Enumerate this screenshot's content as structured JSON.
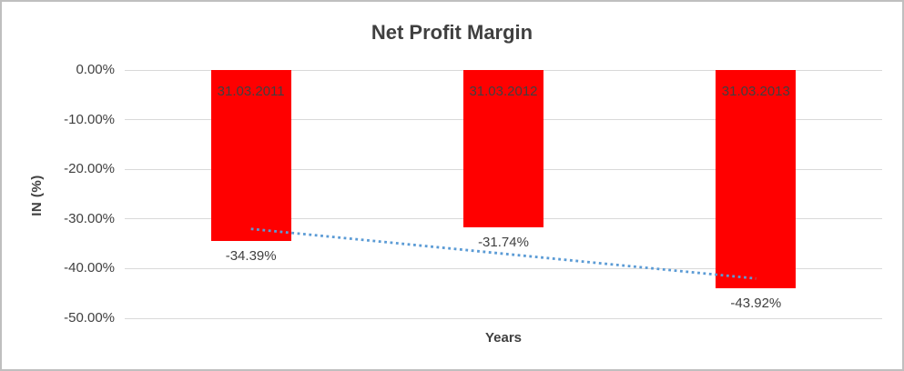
{
  "chart_data": {
    "type": "bar",
    "title": "Net Profit Margin",
    "xlabel": "Years",
    "ylabel": "IN (%)",
    "categories": [
      "31.03.2011",
      "31.03.2012",
      "31.03.2013"
    ],
    "values": [
      -34.39,
      -31.74,
      -43.92
    ],
    "value_labels": [
      "-34.39%",
      "-31.74%",
      "-43.92%"
    ],
    "ylim": [
      0,
      -50
    ],
    "yticks": [
      0,
      -10,
      -20,
      -30,
      -40,
      -50
    ],
    "ytick_labels": [
      "0.00%",
      "-10.00%",
      "-20.00%",
      "-30.00%",
      "-40.00%",
      "-50.00%"
    ],
    "grid": true,
    "legend": "none",
    "category_label_position": "inside-top",
    "value_label_position": "outside-end",
    "trendline": {
      "type": "linear",
      "style": "dotted",
      "start_value": -32.0,
      "end_value": -42.0
    }
  },
  "colors": {
    "bar": "#FF0000",
    "trendline": "#5B9BD5",
    "gridline": "#D9D9D9",
    "text": "#404040",
    "frame_border": "#BFBFBF",
    "background": "#FFFFFF"
  }
}
